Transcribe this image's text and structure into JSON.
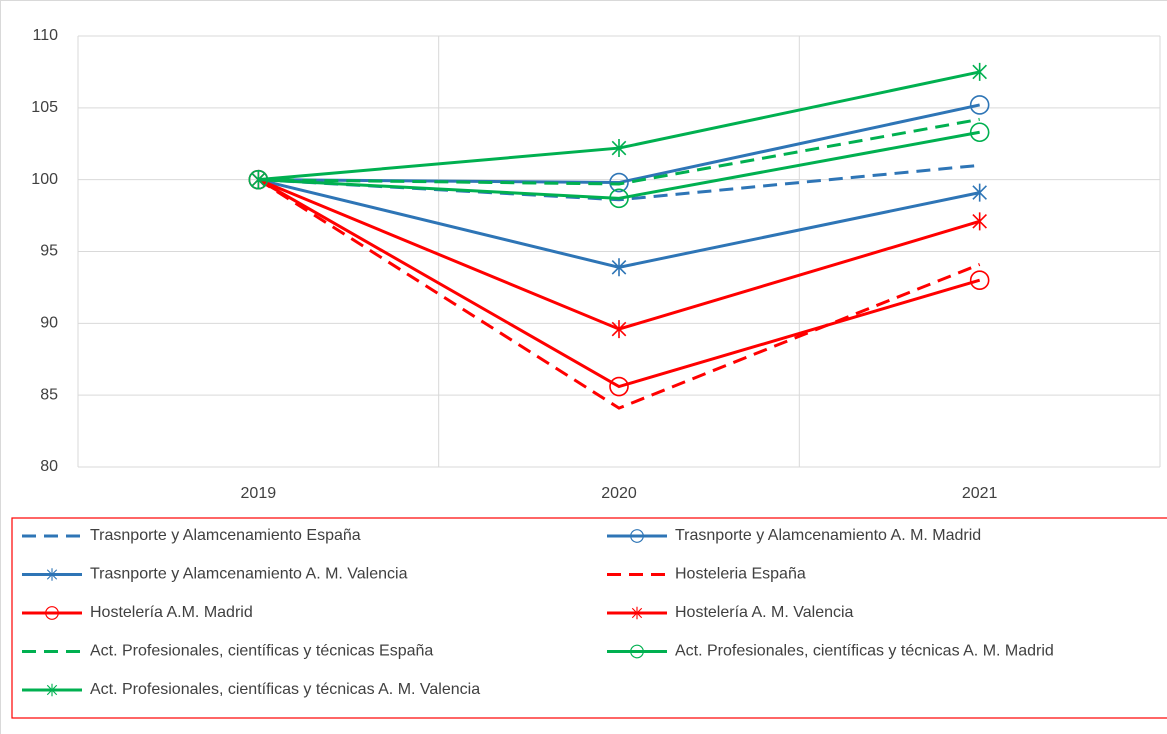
{
  "chart_data": {
    "type": "line",
    "categories": [
      "2019",
      "2020",
      "2021"
    ],
    "ylim": [
      80,
      110
    ],
    "yticks": [
      80,
      85,
      90,
      95,
      100,
      105,
      110
    ],
    "grid": true,
    "series": [
      {
        "name": "Trasnporte y Alamcenamiento España",
        "color": "#2e75b6",
        "dash": true,
        "marker": "none",
        "values": [
          100,
          98.6,
          101.0
        ]
      },
      {
        "name": "Trasnporte y Alamcenamiento A. M. Madrid",
        "color": "#2e75b6",
        "dash": false,
        "marker": "circle",
        "values": [
          100,
          99.8,
          105.2
        ]
      },
      {
        "name": "Trasnporte y Alamcenamiento A. M. Valencia",
        "color": "#2e75b6",
        "dash": false,
        "marker": "star",
        "values": [
          100,
          93.9,
          99.1
        ]
      },
      {
        "name": "Hosteleria España",
        "color": "#ff0000",
        "dash": true,
        "marker": "none",
        "values": [
          100,
          84.1,
          94.1
        ]
      },
      {
        "name": "Hostelería A.M. Madrid",
        "color": "#ff0000",
        "dash": false,
        "marker": "circle",
        "values": [
          100,
          85.6,
          93.0
        ]
      },
      {
        "name": "Hostelería A. M. Valencia",
        "color": "#ff0000",
        "dash": false,
        "marker": "star",
        "values": [
          100,
          89.6,
          97.1
        ]
      },
      {
        "name": "Act. Profesionales, científicas y técnicas España",
        "color": "#00b050",
        "dash": true,
        "marker": "none",
        "values": [
          100,
          99.7,
          104.2
        ]
      },
      {
        "name": "Act. Profesionales, científicas y técnicas A. M. Madrid",
        "color": "#00b050",
        "dash": false,
        "marker": "circle",
        "values": [
          100,
          98.7,
          103.3
        ]
      },
      {
        "name": "Act. Profesionales, científicas y técnicas A. M. Valencia",
        "color": "#00b050",
        "dash": false,
        "marker": "star",
        "values": [
          100,
          102.2,
          107.5
        ]
      }
    ]
  }
}
